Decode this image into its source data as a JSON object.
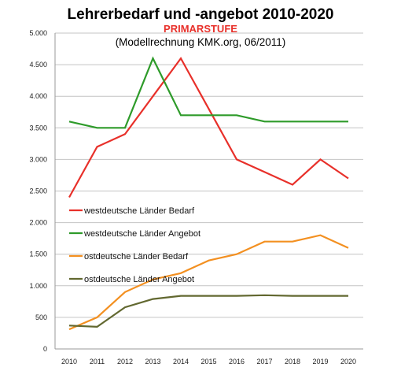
{
  "chart_data": {
    "type": "line",
    "title": "Lehrerbedarf und -angebot 2010-2020",
    "subtitle": "PRIMARSTUFE",
    "source": "(Modellrechnung KMK.org, 06/2011)",
    "x": [
      2010,
      2011,
      2012,
      2013,
      2014,
      2015,
      2016,
      2017,
      2018,
      2019,
      2020
    ],
    "x_tick_labels": [
      "2010",
      "2011",
      "2012",
      "2013",
      "2014",
      "2015",
      "2016",
      "2017",
      "2018",
      "2019",
      "2020"
    ],
    "ylim": [
      0,
      5000
    ],
    "y_ticks": [
      0,
      500,
      1000,
      1500,
      2000,
      2500,
      3000,
      3500,
      4000,
      4500,
      5000
    ],
    "y_tick_labels": [
      "0",
      "500",
      "1.000",
      "1.500",
      "2.000",
      "2.500",
      "3.000",
      "3.500",
      "4.000",
      "4.500",
      "5.000"
    ],
    "grid": true,
    "legend_position": "inside-left",
    "series": [
      {
        "name": "westdeutsche Länder Bedarf",
        "color": "#e8302a",
        "values": [
          2400,
          3200,
          3400,
          4000,
          4600,
          3800,
          3000,
          2800,
          2600,
          3000,
          2700
        ]
      },
      {
        "name": "westdeutsche Länder Angebot",
        "color": "#2e9b2a",
        "values": [
          3600,
          3500,
          3500,
          4600,
          3700,
          3700,
          3700,
          3600,
          3600,
          3600,
          3600
        ]
      },
      {
        "name": "ostdeutsche Länder Bedarf",
        "color": "#f39021",
        "values": [
          310,
          500,
          900,
          1100,
          1200,
          1400,
          1500,
          1700,
          1700,
          1800,
          1600
        ]
      },
      {
        "name": "ostdeutsche Länder Angebot",
        "color": "#626830",
        "values": [
          370,
          350,
          660,
          790,
          840,
          840,
          840,
          850,
          840,
          840,
          840
        ]
      }
    ]
  }
}
